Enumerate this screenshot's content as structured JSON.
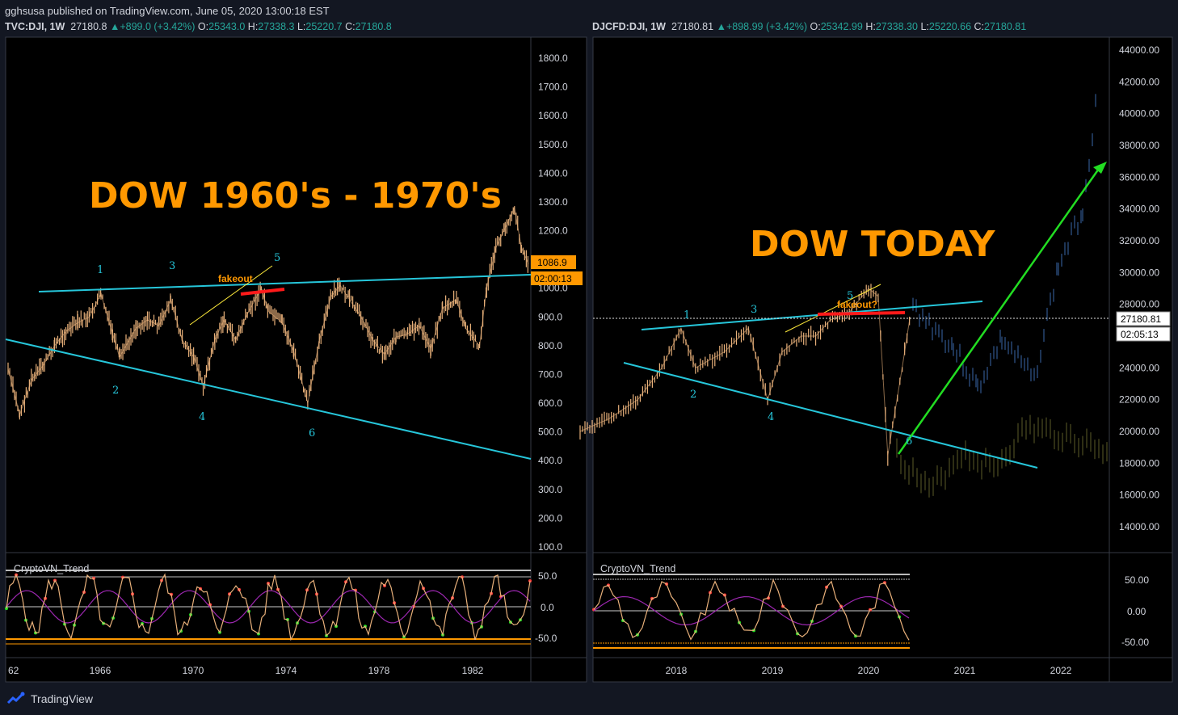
{
  "header": {
    "publisher": "gghsusa published on TradingView.com, June 05, 2020 13:00:18 EST"
  },
  "left_panel": {
    "symbol": "TVC:DJI, 1W",
    "last": "27180.8",
    "change": "+899.0 (+3.42%)",
    "o_label": "O:",
    "o": "25343.0",
    "h_label": "H:",
    "h": "27338.3",
    "l_label": "L:",
    "l": "25220.7",
    "c_label": "C:",
    "c": "27180.8",
    "title": "DOW 1960's - 1970's",
    "price_tag": "1086.9",
    "time_tag": "02:00:13",
    "wave_labels": [
      "1",
      "2",
      "3",
      "4",
      "5",
      "6"
    ],
    "fakeout_label": "fakeout",
    "indicator_name": "CryptoVN_Trend"
  },
  "right_panel": {
    "symbol": "DJCFD:DJI, 1W",
    "last": "27180.81",
    "change": "+898.99 (+3.42%)",
    "o_label": "O:",
    "o": "25342.99",
    "h_label": "H:",
    "h": "27338.30",
    "l_label": "L:",
    "l": "25220.66",
    "c_label": "C:",
    "c": "27180.81",
    "title": "DOW TODAY",
    "price_tag": "27180.81",
    "time_tag": "02:05:13",
    "wave_labels": [
      "1",
      "2",
      "3",
      "4",
      "5",
      "6"
    ],
    "fakeout_label": "fakeout?",
    "indicator_name": "CryptoVN_Trend"
  },
  "footer": {
    "brand": "TradingView"
  },
  "colors": {
    "bg": "#131722",
    "candle": "#e8b07a",
    "trend": "#26c6da",
    "accent": "#ff9800",
    "red": "#ff1a1a",
    "green": "#22dd22",
    "text": "#d1d4dc"
  },
  "chart_data": [
    {
      "type": "line",
      "title": "DOW 1960's - 1970's",
      "x_ticks": [
        "62",
        "1966",
        "1970",
        "1974",
        "1978",
        "1982"
      ],
      "y_ticks": [
        1800,
        1700,
        1600,
        1500,
        1400,
        1300,
        1200,
        1100,
        1000,
        900,
        800,
        700,
        600,
        500,
        400,
        300,
        200,
        100
      ],
      "ylim": [
        100,
        1800
      ],
      "series": [
        {
          "x": [
            1962.0,
            1962.5,
            1963.0,
            1963.5,
            1964.0,
            1964.5,
            1965.0,
            1965.5,
            1966.0,
            1966.5,
            1966.8,
            1967.5,
            1968.0,
            1968.5,
            1969.0,
            1969.5,
            1970.0,
            1970.4,
            1970.9,
            1971.3,
            1971.8,
            1972.3,
            1972.9,
            1973.2,
            1973.8,
            1974.3,
            1974.9,
            1975.4,
            1975.9,
            1976.3,
            1976.7,
            1977.2,
            1977.7,
            1978.2,
            1978.7,
            1979.2,
            1979.7,
            1980.2,
            1980.7,
            1981.3,
            1981.7,
            1982.3,
            1982.6,
            1983.0,
            1983.4,
            1983.8,
            1984.1,
            1984.4
          ],
          "values": [
            720,
            560,
            680,
            730,
            800,
            850,
            880,
            900,
            980,
            840,
            760,
            860,
            890,
            870,
            960,
            820,
            760,
            660,
            820,
            890,
            820,
            910,
            1000,
            920,
            880,
            780,
            600,
            820,
            970,
            1010,
            960,
            900,
            820,
            770,
            830,
            840,
            870,
            790,
            930,
            960,
            860,
            800,
            1000,
            1140,
            1210,
            1280,
            1140,
            1085
          ]
        }
      ],
      "annotations": [
        "1",
        "2",
        "3",
        "4",
        "5",
        "6",
        "fakeout"
      ],
      "last_price": "1086.9"
    },
    {
      "type": "line",
      "title": "DOW TODAY",
      "x_ticks": [
        "2018",
        "2019",
        "2020",
        "2021",
        "2022"
      ],
      "y_ticks": [
        44000,
        42000,
        40000,
        38000,
        36000,
        34000,
        32000,
        30000,
        28000,
        26000,
        24000,
        22000,
        20000,
        18000,
        16000,
        14000
      ],
      "ylim": [
        13000,
        45000
      ],
      "series": [
        {
          "x": [
            2017.0,
            2017.3,
            2017.6,
            2017.85,
            2018.05,
            2018.2,
            2018.5,
            2018.75,
            2018.95,
            2019.1,
            2019.3,
            2019.45,
            2019.6,
            2019.8,
            2020.0,
            2020.1,
            2020.2,
            2020.35,
            2020.43
          ],
          "values": [
            20000,
            20800,
            22000,
            24000,
            26500,
            24000,
            25000,
            26500,
            22000,
            25000,
            26000,
            26000,
            27000,
            27500,
            29000,
            28500,
            18500,
            24000,
            27180
          ]
        }
      ],
      "annotations": [
        "1",
        "2",
        "3",
        "4",
        "5",
        "6",
        "fakeout?"
      ],
      "last_price": "27180.81"
    }
  ]
}
